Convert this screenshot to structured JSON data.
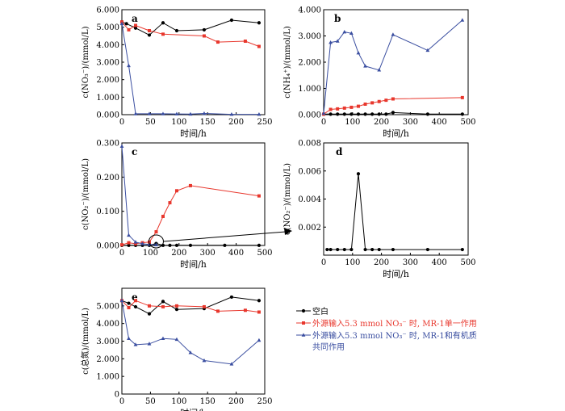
{
  "colors": {
    "blank": "#000000",
    "nitrate_only": "#e8372d",
    "nitrate_organic": "#3a4ea0",
    "axis": "#000000"
  },
  "legend": {
    "items": [
      {
        "series": "blank",
        "label": "空白"
      },
      {
        "series": "nitrate_only",
        "label": "外源输入5.3 mmol NO₃⁻ 时, MR-1单一作用"
      },
      {
        "series": "nitrate_organic",
        "label": "外源输入5.3 mmol NO₃⁻ 时, MR-1和有机质"
      },
      {
        "series": "nitrate_organic_cont",
        "label": "共同作用"
      }
    ]
  },
  "chart_data": [
    {
      "id": "a",
      "type": "line",
      "letter": "a",
      "xlabel": "时间/h",
      "ylabel": "c(NO₃⁻)/(mmol/L)",
      "xlim": [
        0,
        250
      ],
      "ylim": [
        0,
        6
      ],
      "xticks": [
        0,
        50,
        100,
        150,
        200,
        250
      ],
      "xtick_labels": [
        "0",
        "50",
        "100",
        "150",
        "200",
        "250"
      ],
      "yticks": [
        0,
        1,
        2,
        3,
        4,
        5,
        6
      ],
      "ytick_labels": [
        "0.000",
        "1.000",
        "2.000",
        "3.000",
        "4.000",
        "5.000",
        "6.000"
      ],
      "series": [
        {
          "name": "blank",
          "marker": "circle",
          "x": [
            0,
            8,
            24,
            48,
            72,
            96,
            144,
            192,
            240
          ],
          "y": [
            5.3,
            5.2,
            4.95,
            4.55,
            5.25,
            4.8,
            4.85,
            5.4,
            5.25
          ]
        },
        {
          "name": "nitrate_only",
          "marker": "square",
          "x": [
            0,
            12,
            24,
            48,
            72,
            144,
            168,
            216,
            240
          ],
          "y": [
            5.3,
            4.85,
            5.1,
            4.8,
            4.6,
            4.5,
            4.15,
            4.2,
            3.9
          ]
        },
        {
          "name": "nitrate_organic",
          "marker": "triangle",
          "x": [
            0,
            12,
            24,
            48,
            72,
            96,
            120,
            144,
            192,
            240
          ],
          "y": [
            5.2,
            2.8,
            0.05,
            0.05,
            0.05,
            0.04,
            0.03,
            0.07,
            0.02,
            0.02
          ]
        }
      ]
    },
    {
      "id": "b",
      "type": "line",
      "letter": "b",
      "xlabel": "时间/h",
      "ylabel": "c(NH₄⁺)/(mmol/L)",
      "xlim": [
        0,
        500
      ],
      "ylim": [
        0,
        4
      ],
      "xticks": [
        0,
        100,
        200,
        300,
        400,
        500
      ],
      "xtick_labels": [
        "0",
        "100",
        "200",
        "300",
        "400",
        "500"
      ],
      "yticks": [
        0,
        1,
        2,
        3,
        4
      ],
      "ytick_labels": [
        "0.000",
        "1.000",
        "2.000",
        "3.000",
        "4.000"
      ],
      "series": [
        {
          "name": "blank",
          "marker": "circle",
          "x": [
            0,
            24,
            48,
            72,
            96,
            120,
            144,
            168,
            192,
            216,
            240,
            360,
            480
          ],
          "y": [
            0.02,
            0.02,
            0.02,
            0.02,
            0.02,
            0.02,
            0.02,
            0.02,
            0.02,
            0.02,
            0.08,
            0.02,
            0.02
          ]
        },
        {
          "name": "nitrate_only",
          "marker": "square",
          "x": [
            0,
            24,
            48,
            72,
            96,
            120,
            144,
            168,
            192,
            216,
            240,
            480
          ],
          "y": [
            0.02,
            0.2,
            0.22,
            0.25,
            0.28,
            0.32,
            0.4,
            0.45,
            0.5,
            0.55,
            0.6,
            0.65
          ]
        },
        {
          "name": "nitrate_organic",
          "marker": "triangle",
          "x": [
            0,
            24,
            48,
            72,
            96,
            120,
            144,
            192,
            240,
            360,
            480
          ],
          "y": [
            0.05,
            2.75,
            2.8,
            3.15,
            3.1,
            2.35,
            1.85,
            1.7,
            3.05,
            2.45,
            3.6
          ]
        }
      ]
    },
    {
      "id": "c",
      "type": "line",
      "letter": "c",
      "xlabel": "时间/h",
      "ylabel": "c(NO₂⁻)/(mmol/L)",
      "xlim": [
        0,
        500
      ],
      "ylim": [
        0,
        0.3
      ],
      "xticks": [
        0,
        100,
        200,
        300,
        400,
        500
      ],
      "xtick_labels": [
        "0",
        "100",
        "200",
        "300",
        "400",
        "500"
      ],
      "yticks": [
        0,
        0.1,
        0.2,
        0.3
      ],
      "ytick_labels": [
        "0.000",
        "0.100",
        "0.200",
        "0.300"
      ],
      "series": [
        {
          "name": "blank",
          "marker": "circle",
          "x": [
            0,
            24,
            48,
            72,
            96,
            120,
            144,
            168,
            192,
            240,
            360,
            480
          ],
          "y": [
            0.0004,
            0.0004,
            0.0004,
            0.0004,
            0.0004,
            0.0058,
            0.0004,
            0.0004,
            0.0004,
            0.0004,
            0.0004,
            0.0004
          ]
        },
        {
          "name": "nitrate_only",
          "marker": "square",
          "x": [
            0,
            24,
            48,
            72,
            96,
            120,
            144,
            168,
            192,
            240,
            480
          ],
          "y": [
            0.002,
            0.008,
            0.005,
            0.008,
            0.01,
            0.04,
            0.085,
            0.125,
            0.16,
            0.175,
            0.145
          ]
        },
        {
          "name": "nitrate_organic",
          "marker": "triangle",
          "x": [
            0,
            24,
            48,
            72,
            96,
            120
          ],
          "y": [
            0.29,
            0.03,
            0.01,
            0.005,
            0.003,
            0.002
          ]
        }
      ]
    },
    {
      "id": "d",
      "type": "line",
      "letter": "d",
      "xlabel": "时间/h",
      "ylabel": "c(NO₂⁻)/(mmol/L)",
      "xlim": [
        0,
        500
      ],
      "ylim": [
        0,
        0.008
      ],
      "xticks": [
        0,
        100,
        200,
        300,
        400,
        500
      ],
      "xtick_labels": [
        "0",
        "100",
        "200",
        "300",
        "400",
        "500"
      ],
      "yticks": [
        0.002,
        0.004,
        0.006,
        0.008
      ],
      "ytick_labels": [
        "0.002",
        "0.004",
        "0.006",
        "0.008"
      ],
      "series": [
        {
          "name": "blank",
          "marker": "circle",
          "x": [
            12,
            24,
            48,
            72,
            96,
            120,
            144,
            168,
            192,
            240,
            360,
            480
          ],
          "y": [
            0.0004,
            0.0004,
            0.0004,
            0.0004,
            0.0004,
            0.0058,
            0.0004,
            0.0004,
            0.0004,
            0.0004,
            0.0004,
            0.0004
          ]
        }
      ]
    },
    {
      "id": "e",
      "type": "line",
      "letter": "e",
      "xlabel": "时间/h",
      "ylabel": "c(总氮)/(mmol/L)",
      "xlim": [
        0,
        250
      ],
      "ylim": [
        0,
        6
      ],
      "xticks": [
        0,
        50,
        100,
        150,
        200,
        250
      ],
      "xtick_labels": [
        "0",
        "50",
        "100",
        "150",
        "200",
        "250"
      ],
      "yticks": [
        0,
        1,
        2,
        3,
        4,
        5
      ],
      "ytick_labels": [
        "0",
        "1.000",
        "2.000",
        "3.000",
        "4.000",
        "5.000"
      ],
      "series": [
        {
          "name": "blank",
          "marker": "circle",
          "x": [
            0,
            12,
            24,
            48,
            72,
            96,
            144,
            192,
            240
          ],
          "y": [
            5.3,
            5.15,
            4.95,
            4.55,
            5.25,
            4.8,
            4.85,
            5.5,
            5.3
          ]
        },
        {
          "name": "nitrate_only",
          "marker": "square",
          "x": [
            0,
            12,
            24,
            48,
            72,
            96,
            144,
            168,
            216,
            240
          ],
          "y": [
            5.3,
            4.9,
            5.3,
            5.0,
            4.95,
            5.0,
            4.95,
            4.7,
            4.75,
            4.65
          ]
        },
        {
          "name": "nitrate_organic",
          "marker": "triangle",
          "x": [
            0,
            12,
            24,
            48,
            72,
            96,
            120,
            144,
            192,
            240
          ],
          "y": [
            5.3,
            3.15,
            2.8,
            2.85,
            3.15,
            3.1,
            2.35,
            1.9,
            1.7,
            3.05
          ]
        }
      ]
    }
  ]
}
